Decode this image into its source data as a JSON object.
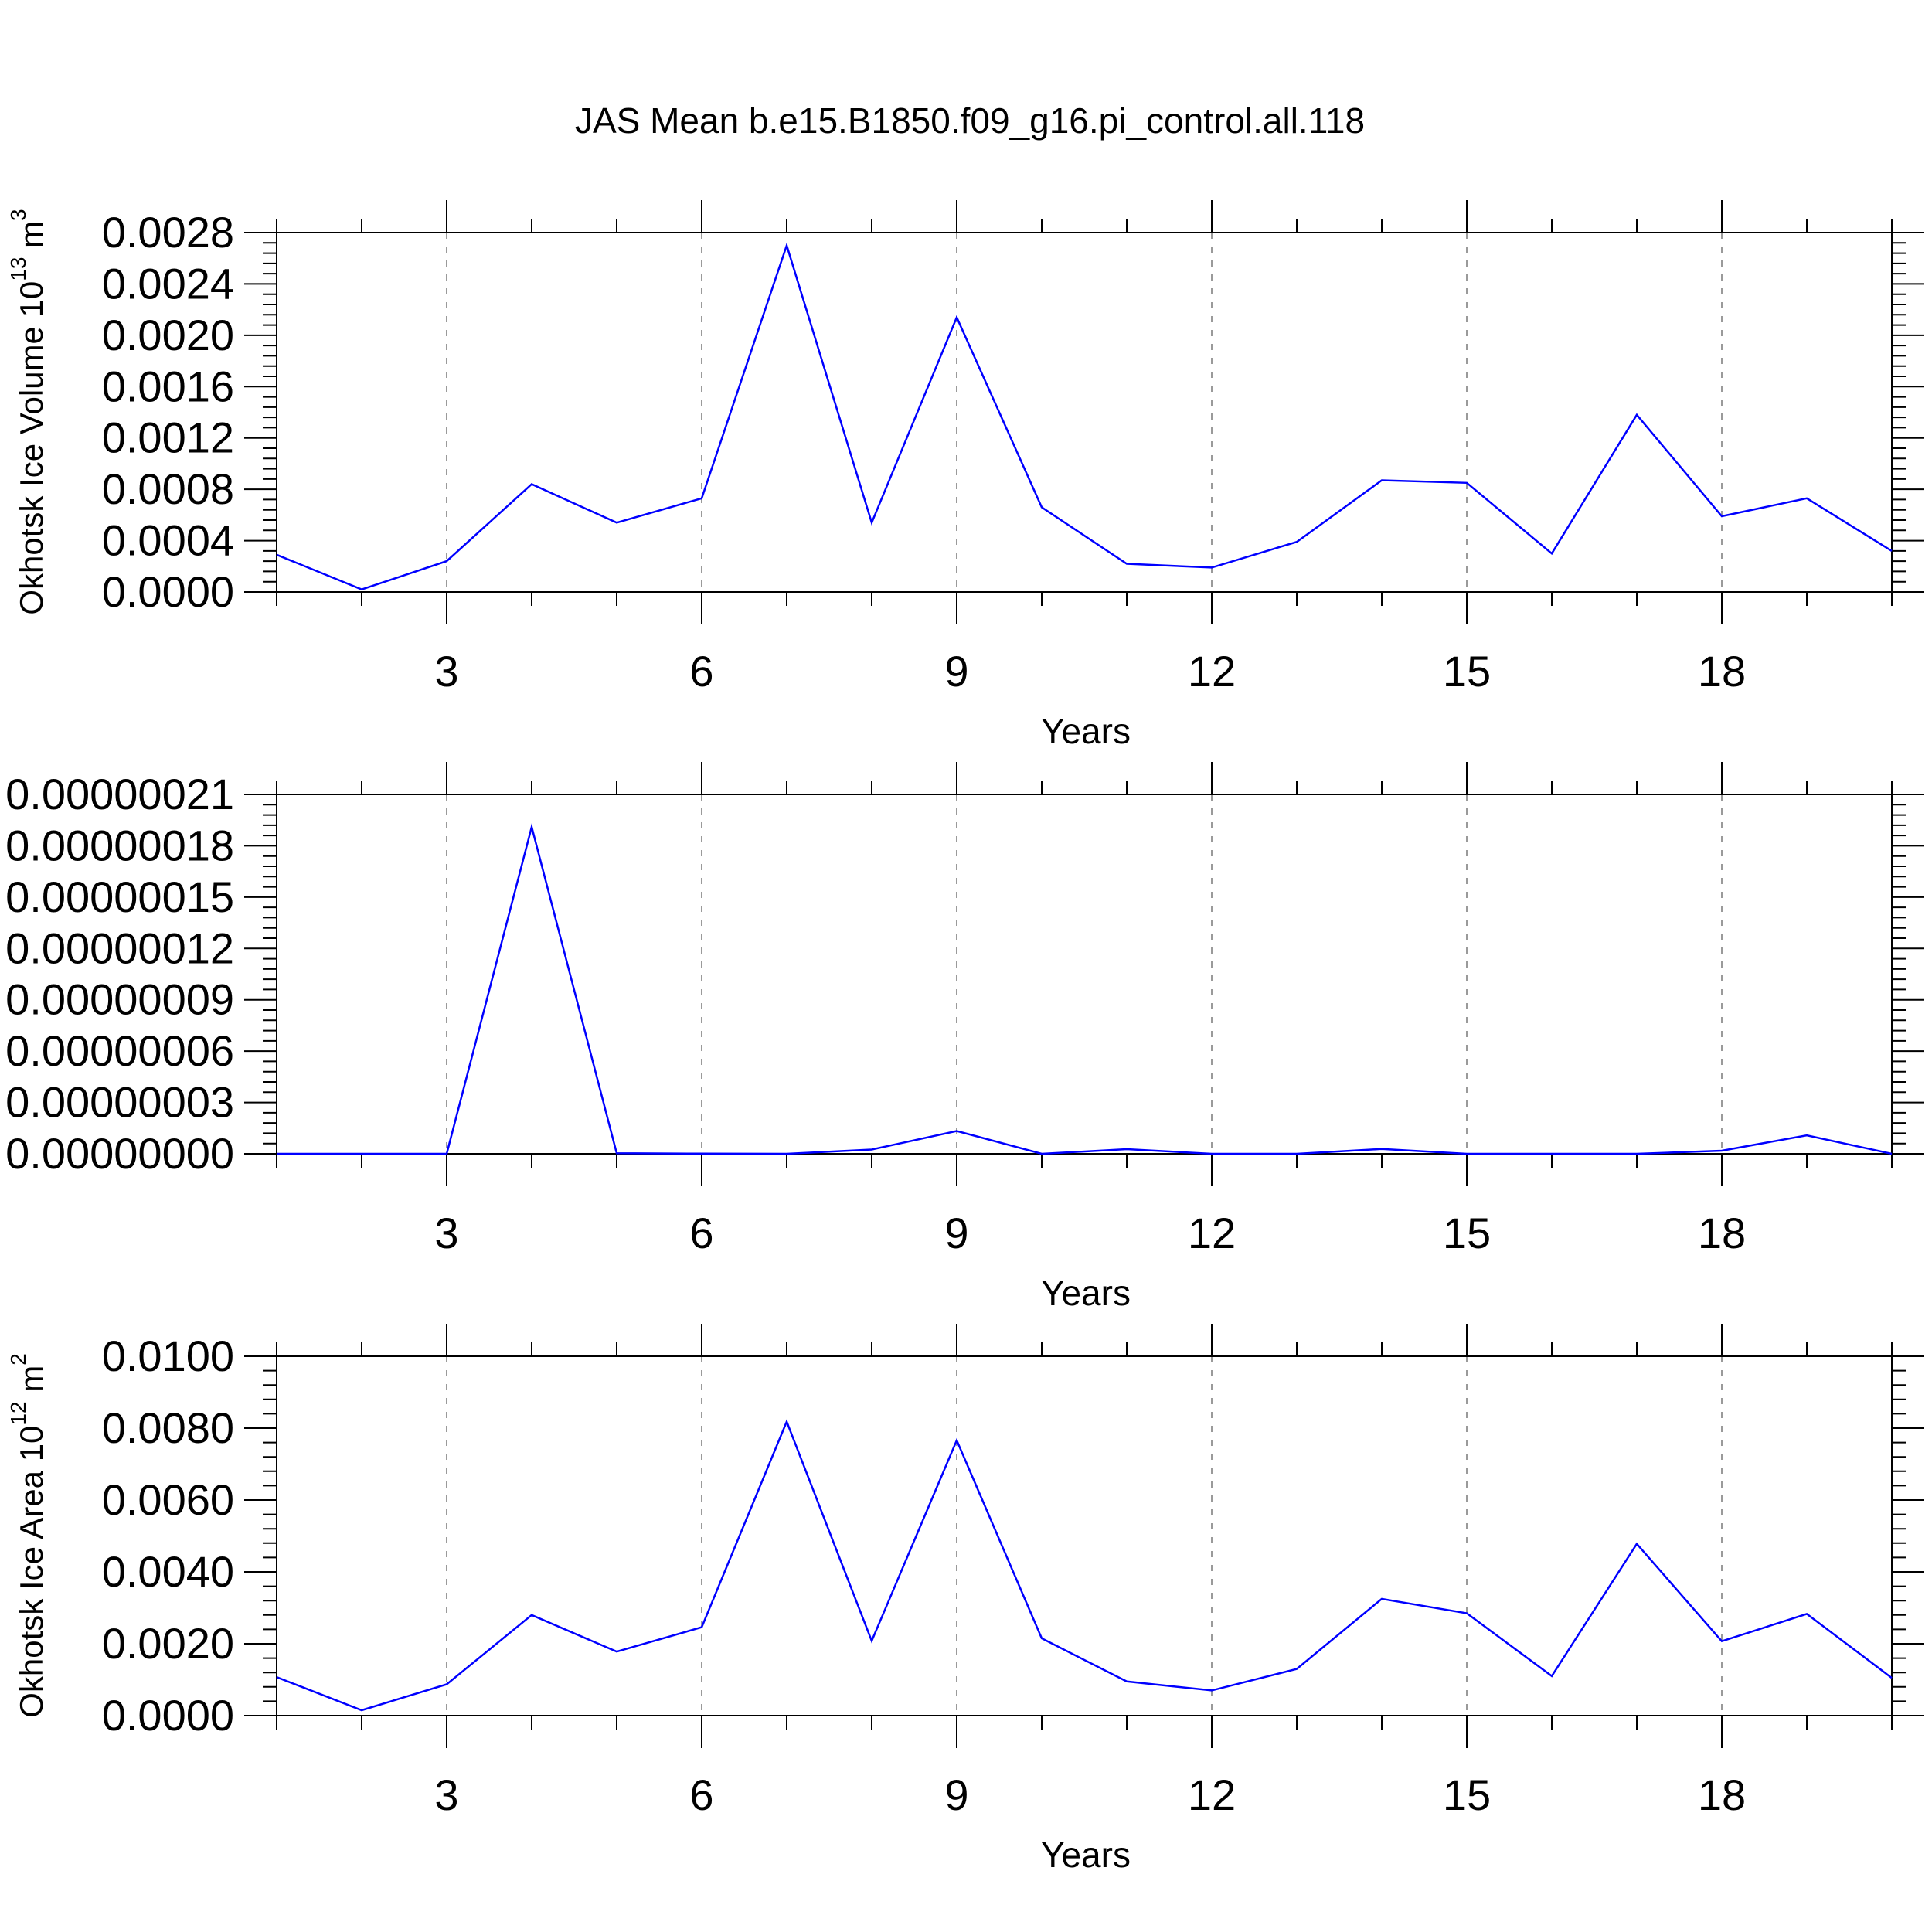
{
  "title": "JAS Mean b.e15.B1850.f09_g16.pi_control.all.118",
  "colors": {
    "line": "#0000ff",
    "axis": "#000000",
    "grid": "#9a9a9a"
  },
  "chart_data": [
    {
      "type": "line",
      "xlabel": "Years",
      "ylabel_main": "Okhotsk Ice Volume 10",
      "ylabel_sup": "13",
      "ylabel_unit": " m",
      "ylabel_unit_sup": "3",
      "xlim": [
        1,
        20
      ],
      "ylim": [
        0,
        0.0028
      ],
      "xticks": [
        3,
        6,
        9,
        12,
        15,
        18
      ],
      "xtick_labels": [
        "3",
        "6",
        "9",
        "12",
        "15",
        "18"
      ],
      "yticks": [
        0,
        0.0004,
        0.0008,
        0.0012,
        0.0016,
        0.002,
        0.0024,
        0.0028
      ],
      "ytick_labels": [
        "0.0000",
        "0.0004",
        "0.0008",
        "0.0012",
        "0.0016",
        "0.0020",
        "0.0024",
        "0.0028"
      ],
      "grid": "vertical dashed at major x ticks",
      "x": [
        1,
        2,
        3,
        4,
        5,
        6,
        7,
        8,
        9,
        10,
        11,
        12,
        13,
        14,
        15,
        16,
        17,
        18,
        19,
        20
      ],
      "series": [
        {
          "values": [
            0.00029,
            2e-05,
            0.00024,
            0.00084,
            0.00054,
            0.00073,
            0.0027,
            0.00054,
            0.00214,
            0.00066,
            0.00022,
            0.00019,
            0.00039,
            0.00087,
            0.00085,
            0.0003,
            0.00138,
            0.00059,
            0.00073,
            0.00032
          ]
        }
      ]
    },
    {
      "type": "line",
      "xlabel": "Years",
      "ylabel_main": "",
      "ylabel_sup": "",
      "ylabel_unit": "",
      "ylabel_unit_sup": "",
      "xlim": [
        1,
        20
      ],
      "ylim": [
        0,
        2.1e-07
      ],
      "xticks": [
        3,
        6,
        9,
        12,
        15,
        18
      ],
      "xtick_labels": [
        "3",
        "6",
        "9",
        "12",
        "15",
        "18"
      ],
      "yticks": [
        0,
        3e-08,
        6e-08,
        9e-08,
        1.2e-07,
        1.5e-07,
        1.8e-07,
        2.1e-07
      ],
      "ytick_labels": [
        "0.00000000",
        "0.00000003",
        "0.00000006",
        "0.00000009",
        "0.00000012",
        "0.00000015",
        "0.00000018",
        "0.00000021"
      ],
      "grid": "vertical dashed at major x ticks",
      "x": [
        1,
        2,
        3,
        4,
        5,
        6,
        7,
        8,
        9,
        10,
        11,
        12,
        13,
        14,
        15,
        16,
        17,
        18,
        19,
        20
      ],
      "series": [
        {
          "values": [
            0,
            0,
            0,
            1.91e-07,
            3e-10,
            1e-10,
            0,
            2.5e-09,
            1.33e-08,
            0,
            2.7e-09,
            0,
            0,
            2.8e-09,
            0,
            0,
            0,
            1.8e-09,
            1.08e-08,
            0
          ]
        }
      ]
    },
    {
      "type": "line",
      "xlabel": "Years",
      "ylabel_main": "Okhotsk Ice Area 10",
      "ylabel_sup": "12",
      "ylabel_unit": " m",
      "ylabel_unit_sup": "2",
      "xlim": [
        1,
        20
      ],
      "ylim": [
        0,
        0.01
      ],
      "xticks": [
        3,
        6,
        9,
        12,
        15,
        18
      ],
      "xtick_labels": [
        "3",
        "6",
        "9",
        "12",
        "15",
        "18"
      ],
      "yticks": [
        0,
        0.002,
        0.004,
        0.006,
        0.008,
        0.01
      ],
      "ytick_labels": [
        "0.0000",
        "0.0020",
        "0.0040",
        "0.0060",
        "0.0080",
        "0.0100"
      ],
      "grid": "vertical dashed at major x ticks",
      "x": [
        1,
        2,
        3,
        4,
        5,
        6,
        7,
        8,
        9,
        10,
        11,
        12,
        13,
        14,
        15,
        16,
        17,
        18,
        19,
        20
      ],
      "series": [
        {
          "values": [
            0.00107,
            0.00015,
            0.00087,
            0.0028,
            0.00178,
            0.00246,
            0.00818,
            0.00208,
            0.00766,
            0.00215,
            0.00095,
            0.0007,
            0.0013,
            0.00325,
            0.00285,
            0.0011,
            0.00478,
            0.00207,
            0.00283,
            0.00105
          ]
        }
      ]
    }
  ]
}
